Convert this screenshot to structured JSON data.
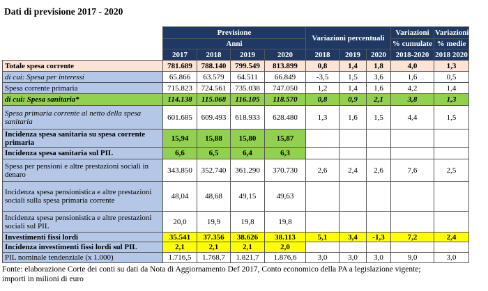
{
  "header": {
    "title": "Dati di previsione 2017 - 2020"
  },
  "table": {
    "head": {
      "forecast": "Previsione",
      "years_label": "Anni",
      "years": [
        "2017",
        "2018",
        "2019",
        "2020"
      ],
      "pct": "Variazioni percentuali",
      "pct_years": [
        "2018",
        "2019",
        "2020"
      ],
      "cum": [
        "Variazioni",
        "% cumulate",
        "2018-2020"
      ],
      "avg": [
        "Variazioni",
        "% medie",
        "2018 2020"
      ]
    },
    "rows": [
      {
        "label": "Totale spesa corrente",
        "values": [
          "781.689",
          "788.140",
          "799.549",
          "813.899",
          "0,8",
          "1,4",
          "1,8",
          "4,0",
          "1,3"
        ]
      },
      {
        "label": "di cui: Spesa per interessi",
        "values": [
          "65.866",
          "63.579",
          "64.511",
          "66.849",
          "-3,5",
          "1,5",
          "3,6",
          "1,6",
          "0,5"
        ]
      },
      {
        "label": "Spesa corrente primaria",
        "values": [
          "715.823",
          "724.561",
          "735.038",
          "747.050",
          "1,2",
          "1,4",
          "1,6",
          "4,2",
          "1,4"
        ]
      },
      {
        "label": "di cui: Spesa sanitaria*",
        "values": [
          "114.138",
          "115.068",
          "116.105",
          "118.570",
          "0,8",
          "0,9",
          "2,1",
          "3,8",
          "1,3"
        ]
      },
      {
        "label": "Spesa primaria corrente al netto della spesa sanitaria",
        "values": [
          "601.685",
          "609.493",
          "618.933",
          "628.480",
          "1,3",
          "1,6",
          "1,5",
          "4,4",
          "1,5"
        ]
      },
      {
        "label": "Incidenza spesa sanitaria su spesa corrente primaria",
        "values": [
          "15,94",
          "15,88",
          "15,80",
          "15,87"
        ]
      },
      {
        "label": "Incidenza spesa sanitaria sul PIL",
        "values": [
          "6,6",
          "6,5",
          "6,4",
          "6,3"
        ]
      },
      {
        "label": "Spesa per pensioni e altre prestazioni sociali in denaro",
        "values": [
          "343.850",
          "352.740",
          "361.290",
          "370.730",
          "2,6",
          "2,4",
          "2,6",
          "7,6",
          "2,5"
        ]
      },
      {
        "label": "Incidenza spesa pensionistica e altre prestazioni sociali sulla spesa primaria corrente",
        "values": [
          "48,04",
          "48,68",
          "49,15",
          "49,63"
        ]
      },
      {
        "label": "Incidenza spesa pensionistica e altre prestazioni sociali sul PIL",
        "values": [
          "20,0",
          "19,9",
          "19,8",
          "19,8"
        ]
      },
      {
        "label": "Investimenti fissi lordi",
        "values": [
          "35.541",
          "37.356",
          "38.626",
          "38.113",
          "5,1",
          "3,4",
          "-1,3",
          "7,2",
          "2,4"
        ]
      },
      {
        "label": "Incidenza investimenti fissi lordi sul PIL",
        "values": [
          "2,1",
          "2,1",
          "2,1",
          "2,0"
        ]
      },
      {
        "label": "PIL nominale tendenziale (x 1.000)",
        "values": [
          "1.716,5",
          "1.768,7",
          "1.821,7",
          "1.876,6",
          "3,0",
          "3,0",
          "3,0",
          "9,0",
          "3,0"
        ]
      }
    ]
  },
  "footnote": {
    "lines": [
      "Fonte: elaborazione Corte dei conti su dati da Nota di Aggiornamento Def 2017, Conto economico della PA a legislazione vigente;",
      "importi in milioni di euro"
    ]
  }
}
